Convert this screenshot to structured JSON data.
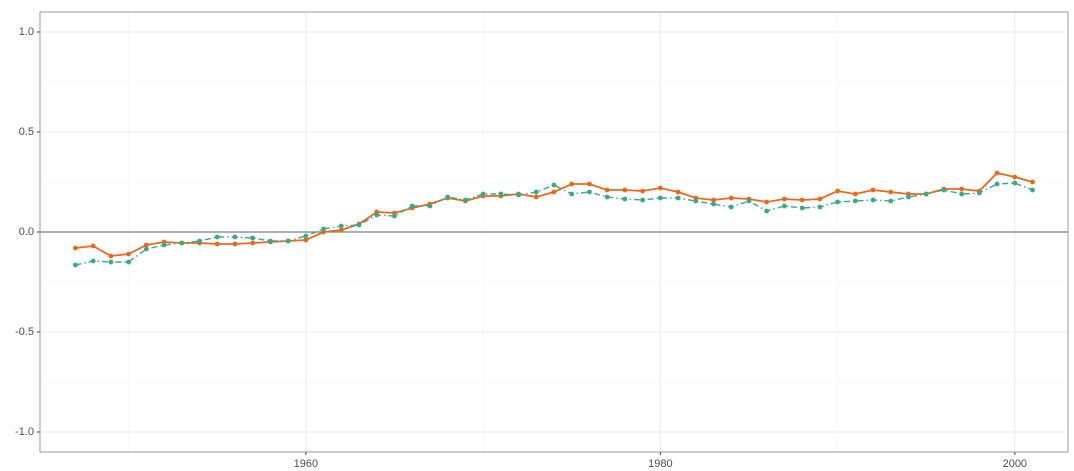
{
  "chart_data": {
    "type": "line",
    "x": [
      1947,
      1948,
      1949,
      1950,
      1951,
      1952,
      1953,
      1954,
      1955,
      1956,
      1957,
      1958,
      1959,
      1960,
      1961,
      1962,
      1963,
      1964,
      1965,
      1966,
      1967,
      1968,
      1969,
      1970,
      1971,
      1972,
      1973,
      1974,
      1975,
      1976,
      1977,
      1978,
      1979,
      1980,
      1981,
      1982,
      1983,
      1984,
      1985,
      1986,
      1987,
      1988,
      1989,
      1990,
      1991,
      1992,
      1993,
      1994,
      1995,
      1996,
      1997,
      1998,
      1999,
      2000,
      2001
    ],
    "series": [
      {
        "color": "#e66a1e",
        "dash": "solid",
        "values": [
          -0.08,
          -0.07,
          -0.12,
          -0.11,
          -0.065,
          -0.05,
          -0.055,
          -0.055,
          -0.06,
          -0.06,
          -0.055,
          -0.05,
          -0.045,
          -0.04,
          0.0,
          0.01,
          0.04,
          0.1,
          0.095,
          0.12,
          0.14,
          0.17,
          0.155,
          0.18,
          0.18,
          0.19,
          0.175,
          0.2,
          0.24,
          0.24,
          0.21,
          0.21,
          0.205,
          0.22,
          0.2,
          0.17,
          0.16,
          0.17,
          0.165,
          0.15,
          0.165,
          0.16,
          0.165,
          0.205,
          0.19,
          0.21,
          0.2,
          0.19,
          0.19,
          0.215,
          0.215,
          0.205,
          0.295,
          0.275,
          0.25
        ]
      },
      {
        "color": "#3aa88a",
        "dash": "dashdot",
        "values": [
          -0.165,
          -0.145,
          -0.15,
          -0.15,
          -0.085,
          -0.065,
          -0.055,
          -0.045,
          -0.025,
          -0.025,
          -0.03,
          -0.045,
          -0.045,
          -0.02,
          0.015,
          0.03,
          0.035,
          0.085,
          0.08,
          0.13,
          0.13,
          0.175,
          0.16,
          0.19,
          0.19,
          0.185,
          0.2,
          0.235,
          0.19,
          0.2,
          0.175,
          0.165,
          0.16,
          0.17,
          0.17,
          0.155,
          0.14,
          0.125,
          0.155,
          0.105,
          0.13,
          0.12,
          0.125,
          0.15,
          0.155,
          0.16,
          0.155,
          0.175,
          0.19,
          0.21,
          0.19,
          0.195,
          0.24,
          0.245,
          0.21
        ]
      }
    ],
    "xlim": [
      1945,
      2003
    ],
    "xticks": [
      1960,
      1980,
      2000
    ],
    "ylim": [
      -1.1,
      1.1
    ],
    "yticks": [
      {
        "value": -1,
        "label": "-1.0"
      },
      {
        "value": -0.5,
        "label": "-0.5"
      },
      {
        "value": 0,
        "label": "0.0"
      },
      {
        "value": 0.5,
        "label": "0.5"
      },
      {
        "value": 1,
        "label": "1.0"
      }
    ],
    "hline": 0,
    "grid": true
  }
}
